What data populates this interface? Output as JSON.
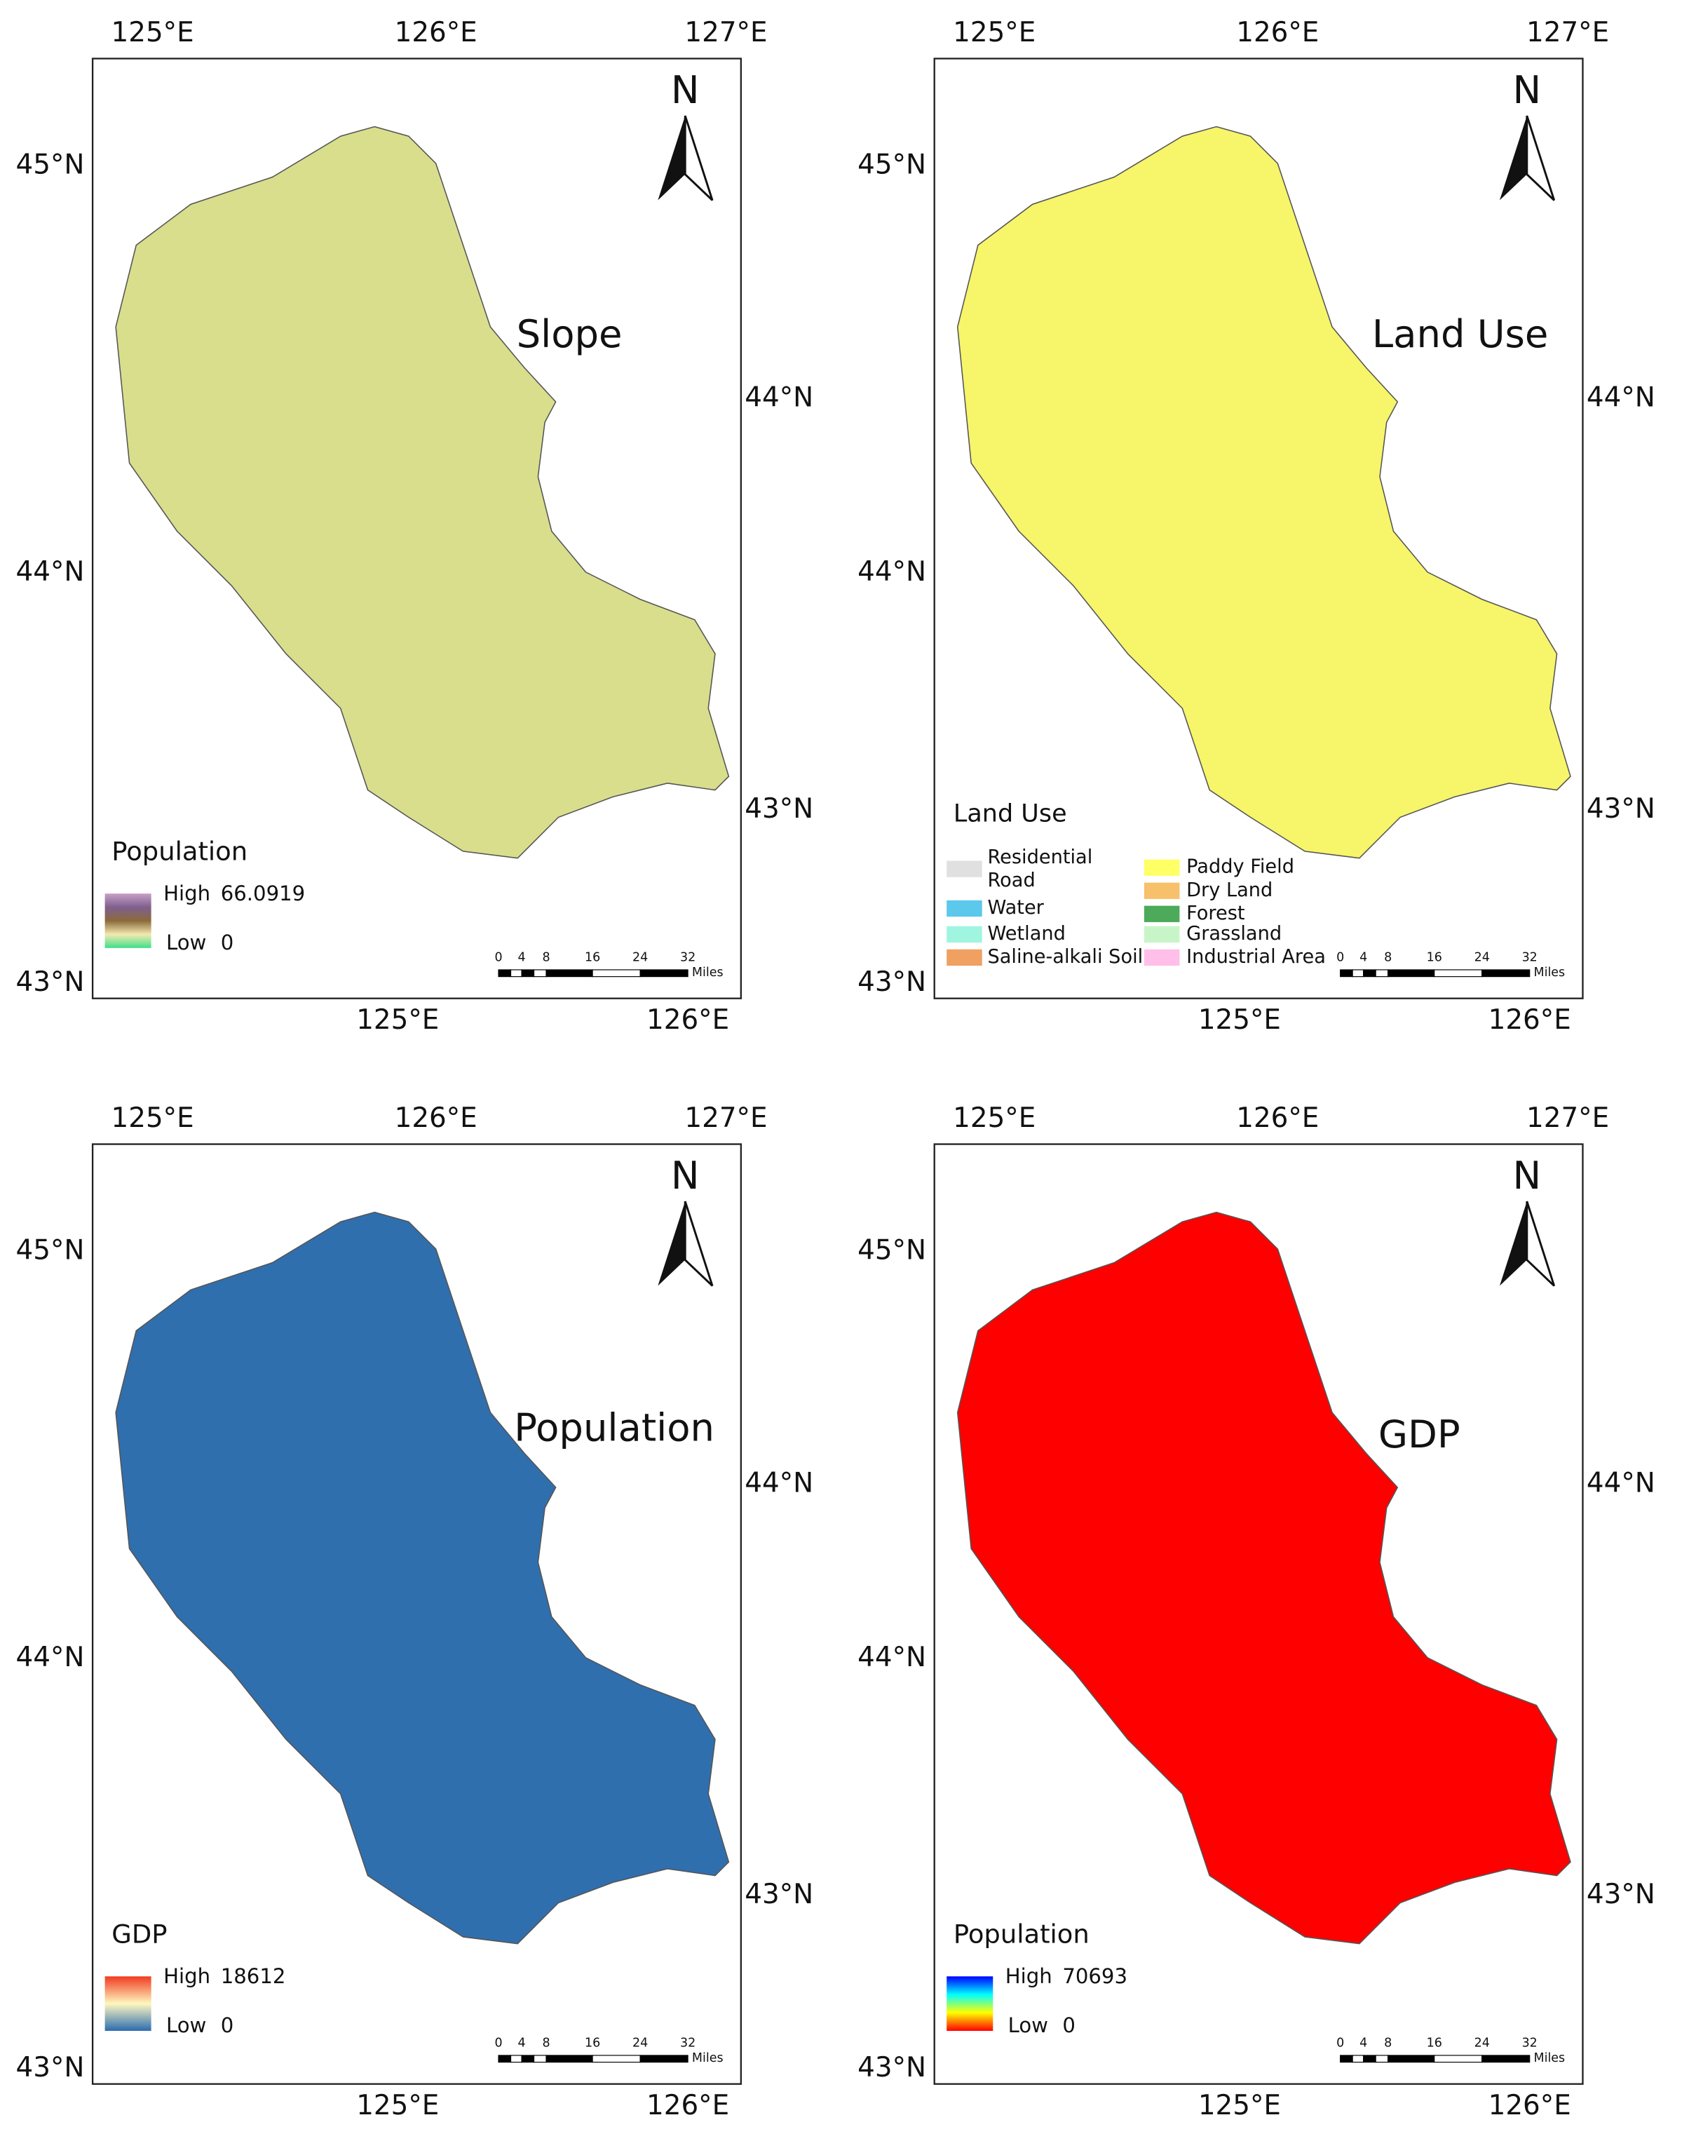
{
  "axes": {
    "top_lon": [
      "125°E",
      "126°E",
      "127°E"
    ],
    "bottom_lon": [
      "125°E",
      "126°E"
    ],
    "left_lat": [
      "45°N",
      "44°N",
      "43°N"
    ],
    "right_lat": [
      "44°N",
      "43°N"
    ]
  },
  "north_label": "N",
  "scale_bar": {
    "ticks": [
      "0",
      "4",
      "8",
      "16",
      "24",
      "32"
    ],
    "unit": "Miles"
  },
  "panels": [
    {
      "title": "Slope",
      "map_color": "#d9de8c",
      "legend": {
        "title": "Population",
        "high_label": "High",
        "high_value": "66.0919",
        "low_label": "Low",
        "low_value": "0",
        "colors": [
          "#c9a0c8",
          "#7f5f8f",
          "#8b6a3a",
          "#f3e9b0",
          "#3de08a"
        ]
      }
    },
    {
      "title": "Land Use",
      "map_color": "#f7f56a",
      "legend": {
        "title": "Land Use",
        "items": [
          {
            "label": "Residential",
            "color": "#e0e0e0"
          },
          {
            "label": "Road"
          },
          {
            "label": "Water",
            "color": "#5bc8ec"
          },
          {
            "label": "Wetland",
            "color": "#9ff5e0"
          },
          {
            "label": "Saline-alkali Soil",
            "color": "#f0a060"
          },
          {
            "label": "Paddy Field",
            "color": "#ffff66"
          },
          {
            "label": "Dry Land",
            "color": "#f7c06a"
          },
          {
            "label": "Forest",
            "color": "#4caa5a"
          },
          {
            "label": "Grassland",
            "color": "#c8f5c8"
          },
          {
            "label": "Industrial Area",
            "color": "#ffbfe8"
          }
        ]
      }
    },
    {
      "title": "Population",
      "map_color": "#2f6fae",
      "legend": {
        "title": "GDP",
        "high_label": "High",
        "high_value": "18612",
        "low_label": "Low",
        "low_value": "0",
        "colors": [
          "#f03b20",
          "#fff7c0",
          "#2b6cb0"
        ]
      }
    },
    {
      "title": "GDP",
      "map_color": "#ff0000",
      "legend": {
        "title": "Population",
        "high_label": "High",
        "high_value": "70693",
        "low_label": "Low",
        "low_value": "0",
        "colors": [
          "#0000ff",
          "#00ffff",
          "#ffff00",
          "#ff0000"
        ]
      }
    }
  ]
}
